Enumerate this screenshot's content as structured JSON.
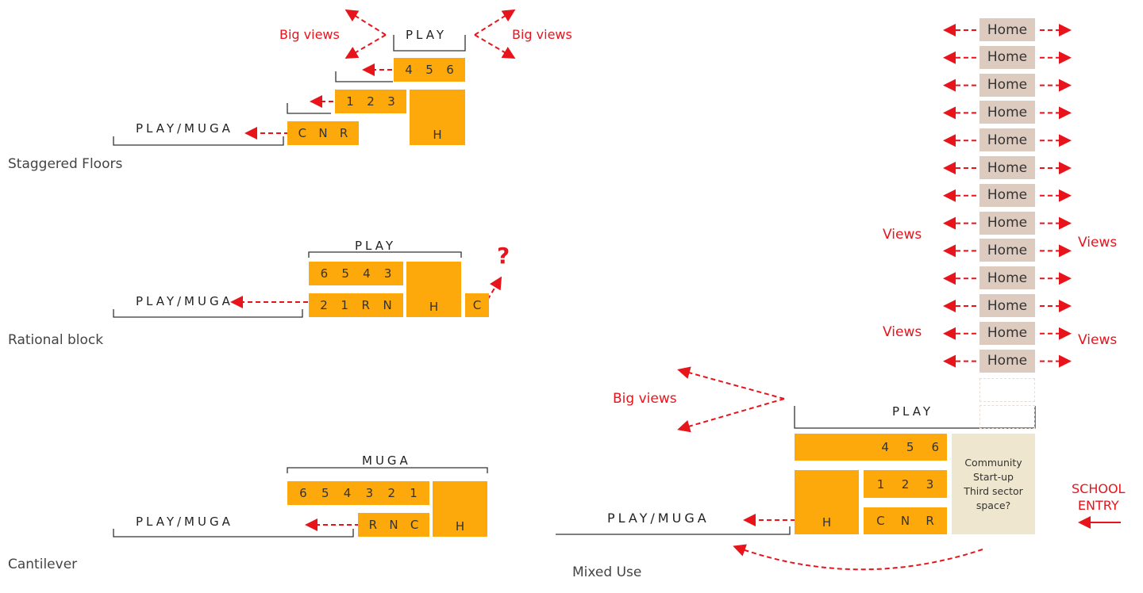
{
  "colors": {
    "space": "#FDA90B",
    "home": "#DDCBC0",
    "community": "#EEE6CF",
    "arrow": "#E8141C",
    "bracket": "#333333"
  },
  "staggered": {
    "title": "Staggered Floors",
    "play": "PLAY",
    "play_muga": "PLAY/MUGA",
    "big_views_left": "Big views",
    "big_views_right": "Big views",
    "floors": [
      {
        "labels": [
          "4",
          "5",
          "6"
        ]
      },
      {
        "labels": [
          "1",
          "2",
          "3"
        ]
      },
      {
        "labels": [
          "C",
          "N",
          "R"
        ]
      }
    ],
    "hall": "H"
  },
  "rational": {
    "title": "Rational block",
    "play": "PLAY",
    "play_muga": "PLAY/MUGA",
    "floors": [
      {
        "labels": [
          "6",
          "5",
          "4",
          "3"
        ]
      },
      {
        "labels": [
          "2",
          "1",
          "R",
          "N"
        ]
      }
    ],
    "hall": "H",
    "c_block": "C",
    "question": "?"
  },
  "cantilever": {
    "title": "Cantilever",
    "muga": "MUGA",
    "play_muga": "PLAY/MUGA",
    "floors": [
      {
        "labels": [
          "6",
          "5",
          "4",
          "3",
          "2",
          "1"
        ]
      },
      {
        "labels": [
          "R",
          "N",
          "C"
        ]
      }
    ],
    "hall": "H"
  },
  "mixed": {
    "title": "Mixed Use",
    "play": "PLAY",
    "play_muga": "PLAY/MUGA",
    "big_views": "Big views",
    "homes": [
      "Home",
      "Home",
      "Home",
      "Home",
      "Home",
      "Home",
      "Home",
      "Home",
      "Home",
      "Home",
      "Home",
      "Home",
      "Home"
    ],
    "views": [
      "Views",
      "Views",
      "Views",
      "Views"
    ],
    "floors": [
      {
        "labels": [
          "4",
          "5",
          "6"
        ]
      },
      {
        "labels": [
          "1",
          "2",
          "3"
        ]
      },
      {
        "labels": [
          "C",
          "N",
          "R"
        ]
      }
    ],
    "hall": "H",
    "community": [
      "Community",
      "Start-up",
      "Third sector",
      "space?"
    ],
    "school_entry": [
      "SCHOOL",
      "ENTRY"
    ]
  }
}
